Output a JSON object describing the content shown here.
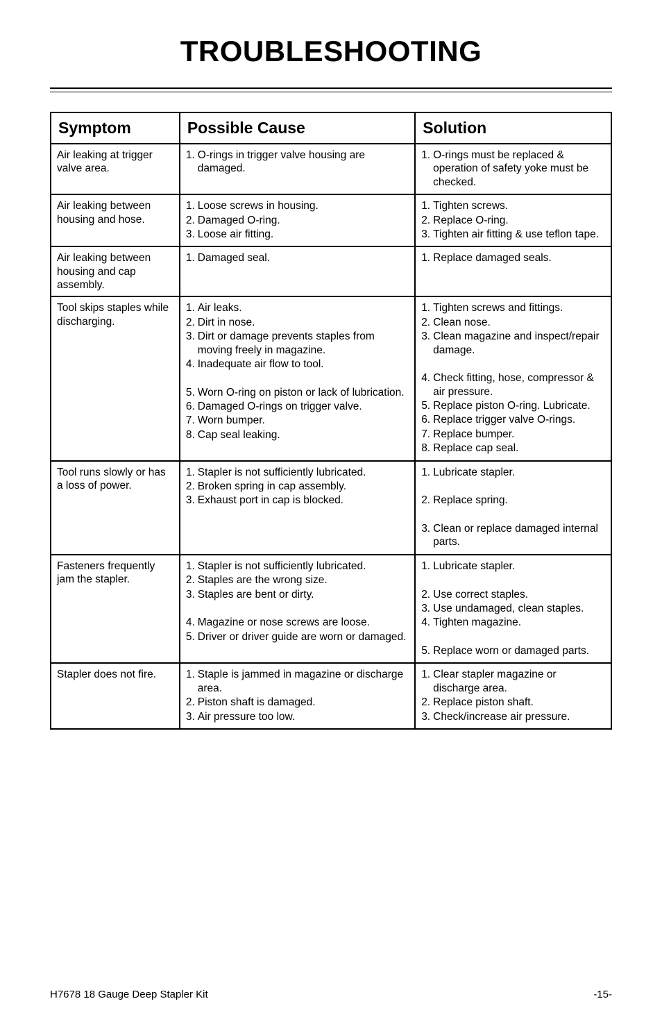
{
  "title": "TROUBLESHOOTING",
  "headers": {
    "symptom": "Symptom",
    "cause": "Possible Cause",
    "solution": "Solution"
  },
  "colors": {
    "border": "#000000",
    "text": "#000000",
    "background": "#ffffff"
  },
  "typography": {
    "title_size": 42,
    "header_size": 23,
    "body_size": 15.5,
    "footer_size": 15
  },
  "rows": [
    {
      "symptom": "Air leaking at trigger valve area.",
      "cause": [
        "O-rings in trigger valve housing are damaged."
      ],
      "solution": [
        "O-rings must be replaced & operation of safety yoke must be checked."
      ]
    },
    {
      "symptom": "Air leaking between housing and hose.",
      "cause": [
        "Loose screws in housing.",
        "Damaged O-ring.",
        "Loose air fitting."
      ],
      "solution": [
        "Tighten screws.",
        "Replace O-ring.",
        "Tighten air fitting & use teflon tape."
      ]
    },
    {
      "symptom": "Air leaking between housing and cap assembly.",
      "cause": [
        "Damaged seal."
      ],
      "solution": [
        "Replace damaged seals."
      ]
    },
    {
      "symptom": "Tool skips staples while discharging.",
      "cause": [
        "Air leaks.",
        "Dirt in nose.",
        "Dirt or damage prevents staples from moving freely in magazine.",
        "Inadequate air flow to tool.",
        "",
        "Worn O-ring on piston or lack of lubrication.",
        "Damaged O-rings on trigger valve.",
        "Worn bumper.",
        "Cap seal leaking."
      ],
      "causeNums": [
        "1.",
        "2.",
        "3.",
        "4.",
        "",
        "5.",
        "6.",
        "7.",
        "8."
      ],
      "solution": [
        "Tighten screws and fittings.",
        "Clean nose.",
        "Clean magazine and inspect/repair damage.",
        "",
        "Check fitting, hose, compressor & air pressure.",
        "Replace piston O-ring. Lubricate.",
        "Replace trigger valve O-rings.",
        "Replace bumper.",
        "Replace cap seal."
      ],
      "solutionNums": [
        "1.",
        "2.",
        "3.",
        "",
        "4.",
        "5.",
        "6.",
        "7.",
        "8."
      ]
    },
    {
      "symptom": "Tool runs slowly or has a loss of power.",
      "cause": [
        "Stapler is not sufficiently lubricated.",
        "Broken spring in cap assembly.",
        "Exhaust port in cap is blocked."
      ],
      "solution": [
        "Lubricate stapler.",
        "",
        "Replace spring.",
        "",
        "Clean or replace damaged internal parts."
      ],
      "solutionNums": [
        "1.",
        "",
        "2.",
        "",
        "3."
      ]
    },
    {
      "symptom": "Fasteners frequently jam the stapler.",
      "cause": [
        "Stapler is not sufficiently lubricated.",
        "Staples are the wrong size.",
        "Staples are bent or dirty.",
        "",
        "Magazine or nose screws are loose.",
        "Driver or driver guide are worn or damaged."
      ],
      "causeNums": [
        "1.",
        "2.",
        "3.",
        "",
        "4.",
        "5."
      ],
      "solution": [
        "Lubricate stapler.",
        "",
        "Use correct staples.",
        "Use undamaged, clean staples.",
        "Tighten magazine.",
        "",
        "Replace worn or damaged parts."
      ],
      "solutionNums": [
        "1.",
        "",
        "2.",
        "3.",
        "4.",
        "",
        "5."
      ]
    },
    {
      "symptom": "Stapler does not fire.",
      "cause": [
        "Staple is jammed in magazine or discharge area.",
        "Piston shaft is damaged.",
        "Air pressure too low."
      ],
      "solution": [
        "Clear stapler magazine or discharge area.",
        "Replace piston shaft.",
        "Check/increase air pressure."
      ]
    }
  ],
  "footer": {
    "left": "H7678 18 Gauge Deep Stapler Kit",
    "right": "-15-"
  }
}
